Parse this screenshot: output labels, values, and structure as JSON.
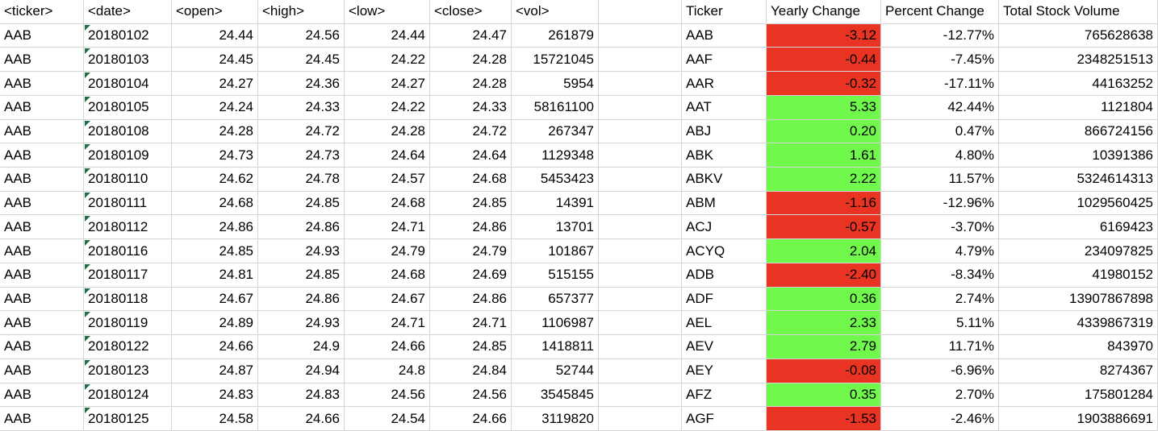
{
  "colors": {
    "negative_fill": "#E93323",
    "positive_fill": "#71F84D",
    "gridline": "#D6D6D6",
    "error_indicator": "#1E7145",
    "text": "#000000",
    "background": "#FFFFFF"
  },
  "daily_table": {
    "headers": [
      "<ticker>",
      "<date>",
      "<open>",
      "<high>",
      "<low>",
      "<close>",
      "<vol>"
    ],
    "fields": [
      "ticker",
      "date",
      "open",
      "high",
      "low",
      "close",
      "vol"
    ],
    "rows": [
      [
        "AAB",
        "20180102",
        "24.44",
        "24.56",
        "24.44",
        "24.47",
        "261879"
      ],
      [
        "AAB",
        "20180103",
        "24.45",
        "24.45",
        "24.22",
        "24.28",
        "15721045"
      ],
      [
        "AAB",
        "20180104",
        "24.27",
        "24.36",
        "24.27",
        "24.28",
        "5954"
      ],
      [
        "AAB",
        "20180105",
        "24.24",
        "24.33",
        "24.22",
        "24.33",
        "58161100"
      ],
      [
        "AAB",
        "20180108",
        "24.28",
        "24.72",
        "24.28",
        "24.72",
        "267347"
      ],
      [
        "AAB",
        "20180109",
        "24.73",
        "24.73",
        "24.64",
        "24.64",
        "1129348"
      ],
      [
        "AAB",
        "20180110",
        "24.62",
        "24.78",
        "24.57",
        "24.68",
        "5453423"
      ],
      [
        "AAB",
        "20180111",
        "24.68",
        "24.85",
        "24.68",
        "24.85",
        "14391"
      ],
      [
        "AAB",
        "20180112",
        "24.86",
        "24.86",
        "24.71",
        "24.86",
        "13701"
      ],
      [
        "AAB",
        "20180116",
        "24.85",
        "24.93",
        "24.79",
        "24.79",
        "101867"
      ],
      [
        "AAB",
        "20180117",
        "24.81",
        "24.85",
        "24.68",
        "24.69",
        "515155"
      ],
      [
        "AAB",
        "20180118",
        "24.67",
        "24.86",
        "24.67",
        "24.86",
        "657377"
      ],
      [
        "AAB",
        "20180119",
        "24.89",
        "24.93",
        "24.71",
        "24.71",
        "1106987"
      ],
      [
        "AAB",
        "20180122",
        "24.66",
        "24.9",
        "24.66",
        "24.85",
        "1418811"
      ],
      [
        "AAB",
        "20180123",
        "24.87",
        "24.94",
        "24.8",
        "24.84",
        "52744"
      ],
      [
        "AAB",
        "20180124",
        "24.83",
        "24.83",
        "24.56",
        "24.56",
        "3545845"
      ],
      [
        "AAB",
        "20180125",
        "24.58",
        "24.66",
        "24.54",
        "24.66",
        "3119820"
      ]
    ]
  },
  "summary_table": {
    "headers": [
      "Ticker",
      "Yearly Change",
      "Percent Change",
      "Total Stock Volume"
    ],
    "rows": [
      {
        "ticker": "AAB",
        "yearly_change": "-3.12",
        "fill": "negative",
        "percent_change": "-12.77%",
        "total_stock_volume": "765628638"
      },
      {
        "ticker": "AAF",
        "yearly_change": "-0.44",
        "fill": "negative",
        "percent_change": "-7.45%",
        "total_stock_volume": "2348251513"
      },
      {
        "ticker": "AAR",
        "yearly_change": "-0.32",
        "fill": "negative",
        "percent_change": "-17.11%",
        "total_stock_volume": "44163252"
      },
      {
        "ticker": "AAT",
        "yearly_change": "5.33",
        "fill": "positive",
        "percent_change": "42.44%",
        "total_stock_volume": "1121804"
      },
      {
        "ticker": "ABJ",
        "yearly_change": "0.20",
        "fill": "positive",
        "percent_change": "0.47%",
        "total_stock_volume": "866724156"
      },
      {
        "ticker": "ABK",
        "yearly_change": "1.61",
        "fill": "positive",
        "percent_change": "4.80%",
        "total_stock_volume": "10391386"
      },
      {
        "ticker": "ABKV",
        "yearly_change": "2.22",
        "fill": "positive",
        "percent_change": "11.57%",
        "total_stock_volume": "5324614313"
      },
      {
        "ticker": "ABM",
        "yearly_change": "-1.16",
        "fill": "negative",
        "percent_change": "-12.96%",
        "total_stock_volume": "1029560425"
      },
      {
        "ticker": "ACJ",
        "yearly_change": "-0.57",
        "fill": "negative",
        "percent_change": "-3.70%",
        "total_stock_volume": "6169423"
      },
      {
        "ticker": "ACYQ",
        "yearly_change": "2.04",
        "fill": "positive",
        "percent_change": "4.79%",
        "total_stock_volume": "234097825"
      },
      {
        "ticker": "ADB",
        "yearly_change": "-2.40",
        "fill": "negative",
        "percent_change": "-8.34%",
        "total_stock_volume": "41980152"
      },
      {
        "ticker": "ADF",
        "yearly_change": "0.36",
        "fill": "positive",
        "percent_change": "2.74%",
        "total_stock_volume": "13907867898"
      },
      {
        "ticker": "AEL",
        "yearly_change": "2.33",
        "fill": "positive",
        "percent_change": "5.11%",
        "total_stock_volume": "4339867319"
      },
      {
        "ticker": "AEV",
        "yearly_change": "2.79",
        "fill": "positive",
        "percent_change": "11.71%",
        "total_stock_volume": "843970"
      },
      {
        "ticker": "AEY",
        "yearly_change": "-0.08",
        "fill": "negative",
        "percent_change": "-6.96%",
        "total_stock_volume": "8274367"
      },
      {
        "ticker": "AFZ",
        "yearly_change": "0.35",
        "fill": "positive",
        "percent_change": "2.70%",
        "total_stock_volume": "175801284"
      },
      {
        "ticker": "AGF",
        "yearly_change": "-1.53",
        "fill": "negative",
        "percent_change": "-2.46%",
        "total_stock_volume": "1903886691"
      }
    ]
  }
}
